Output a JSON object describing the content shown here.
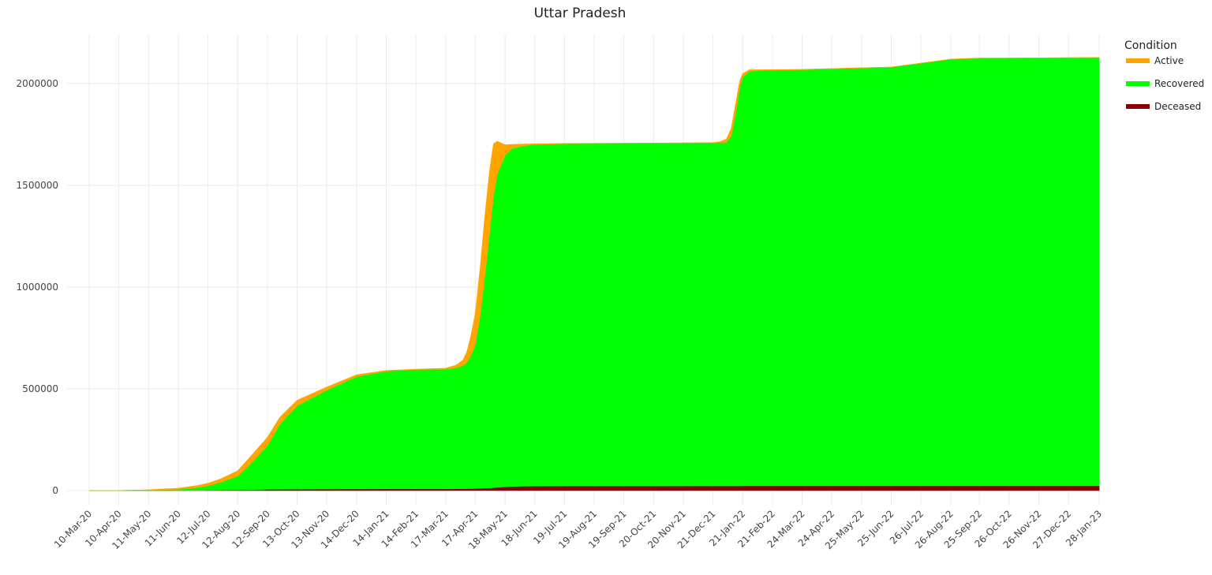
{
  "chart_data": {
    "type": "area",
    "stacked": true,
    "title": "Uttar Pradesh",
    "xlabel": "",
    "ylabel": "",
    "ylim": [
      -70000,
      2240000
    ],
    "yticks": [
      0,
      500000,
      1000000,
      1500000,
      2000000
    ],
    "ytick_labels": [
      "0",
      "500000",
      "1000000",
      "1500000",
      "2000000"
    ],
    "xticks": [
      "2020-03-10",
      "2020-04-10",
      "2020-05-11",
      "2020-06-11",
      "2020-07-12",
      "2020-08-12",
      "2020-09-12",
      "2020-10-13",
      "2020-11-13",
      "2020-12-14",
      "2021-01-14",
      "2021-02-14",
      "2021-03-17",
      "2021-04-17",
      "2021-05-18",
      "2021-06-18",
      "2021-07-19",
      "2021-08-19",
      "2021-09-19",
      "2021-10-20",
      "2021-11-20",
      "2021-12-21",
      "2022-01-21",
      "2022-02-21",
      "2022-03-24",
      "2022-04-24",
      "2022-05-25",
      "2022-06-25",
      "2022-07-26",
      "2022-08-26",
      "2022-09-25",
      "2022-10-26",
      "2022-11-26",
      "2022-12-27",
      "2023-01-28"
    ],
    "xtick_labels": [
      "10-Mar-20",
      "10-Apr-20",
      "11-May-20",
      "11-Jun-20",
      "12-Jul-20",
      "12-Aug-20",
      "12-Sep-20",
      "13-Oct-20",
      "13-Nov-20",
      "14-Dec-20",
      "14-Jan-21",
      "14-Feb-21",
      "17-Mar-21",
      "17-Apr-21",
      "18-May-21",
      "18-Jun-21",
      "19-Jul-21",
      "19-Aug-21",
      "19-Sep-21",
      "20-Oct-21",
      "20-Nov-21",
      "21-Dec-21",
      "21-Jan-22",
      "21-Feb-22",
      "24-Mar-22",
      "24-Apr-22",
      "25-May-22",
      "25-Jun-22",
      "26-Jul-22",
      "26-Aug-22",
      "25-Sep-22",
      "26-Oct-22",
      "26-Nov-22",
      "27-Dec-22",
      "28-Jan-23"
    ],
    "grid": true,
    "legend": {
      "title": "Condition",
      "placement": "right-top"
    },
    "x": [
      "2020-03-10",
      "2020-04-10",
      "2020-05-11",
      "2020-06-11",
      "2020-07-01",
      "2020-07-12",
      "2020-07-25",
      "2020-08-12",
      "2020-08-25",
      "2020-09-12",
      "2020-09-25",
      "2020-10-13",
      "2020-11-13",
      "2020-12-14",
      "2021-01-14",
      "2021-02-14",
      "2021-03-17",
      "2021-03-28",
      "2021-04-04",
      "2021-04-08",
      "2021-04-12",
      "2021-04-17",
      "2021-04-22",
      "2021-04-27",
      "2021-05-02",
      "2021-05-06",
      "2021-05-10",
      "2021-05-18",
      "2021-05-25",
      "2021-06-05",
      "2021-06-18",
      "2021-07-19",
      "2021-10-20",
      "2021-12-21",
      "2021-12-28",
      "2022-01-04",
      "2022-01-09",
      "2022-01-14",
      "2022-01-18",
      "2022-01-21",
      "2022-01-28",
      "2022-02-05",
      "2022-02-21",
      "2022-03-24",
      "2022-04-24",
      "2022-05-25",
      "2022-06-25",
      "2022-07-26",
      "2022-08-26",
      "2022-09-25",
      "2022-10-26",
      "2022-11-26",
      "2022-12-27",
      "2023-01-28"
    ],
    "series": [
      {
        "name": "Deceased",
        "color": "#8b0000",
        "values": [
          0,
          0,
          100,
          500,
          1200,
          1700,
          2500,
          3500,
          4500,
          6000,
          6900,
          7000,
          7500,
          8300,
          8700,
          8700,
          8800,
          8900,
          9000,
          9300,
          9800,
          10300,
          11000,
          12000,
          13000,
          14500,
          16000,
          18500,
          20500,
          21900,
          22400,
          22600,
          22800,
          22900,
          22900,
          22950,
          23000,
          23100,
          23200,
          23300,
          23350,
          23400,
          23450,
          23470,
          23480,
          23490,
          23500,
          23520,
          23540,
          23560,
          23580,
          23600,
          23620,
          23630
        ]
      },
      {
        "name": "Recovered",
        "color": "#00ff00",
        "values": [
          0,
          100,
          2000,
          6000,
          14000,
          22000,
          38000,
          68000,
          125000,
          215000,
          320000,
          410000,
          487000,
          552000,
          578000,
          586000,
          588000,
          595000,
          605000,
          620000,
          650000,
          710000,
          850000,
          1050000,
          1260000,
          1440000,
          1540000,
          1630000,
          1660000,
          1672000,
          1678000,
          1682000,
          1684000,
          1686000,
          1687500,
          1689000,
          1720000,
          1840000,
          1960000,
          2010000,
          2037000,
          2041000,
          2043000,
          2045000,
          2049000,
          2053000,
          2057000,
          2076000,
          2096000,
          2101000,
          2101500,
          2102000,
          2103000,
          2104000
        ]
      },
      {
        "name": "Active",
        "color": "#ffa500",
        "values": [
          0,
          200,
          1500,
          5000,
          9000,
          12000,
          16000,
          25000,
          35000,
          40000,
          33000,
          26000,
          14000,
          8000,
          3000,
          1500,
          4000,
          12000,
          26000,
          50000,
          90000,
          150000,
          230000,
          290000,
          300000,
          250000,
          160000,
          50000,
          20000,
          8000,
          3000,
          1000,
          500,
          500,
          3500,
          15000,
          35000,
          45000,
          30000,
          15000,
          7000,
          3000,
          1500,
          1000,
          800,
          700,
          600,
          500,
          400,
          300,
          300,
          300,
          300,
          300
        ]
      }
    ]
  }
}
